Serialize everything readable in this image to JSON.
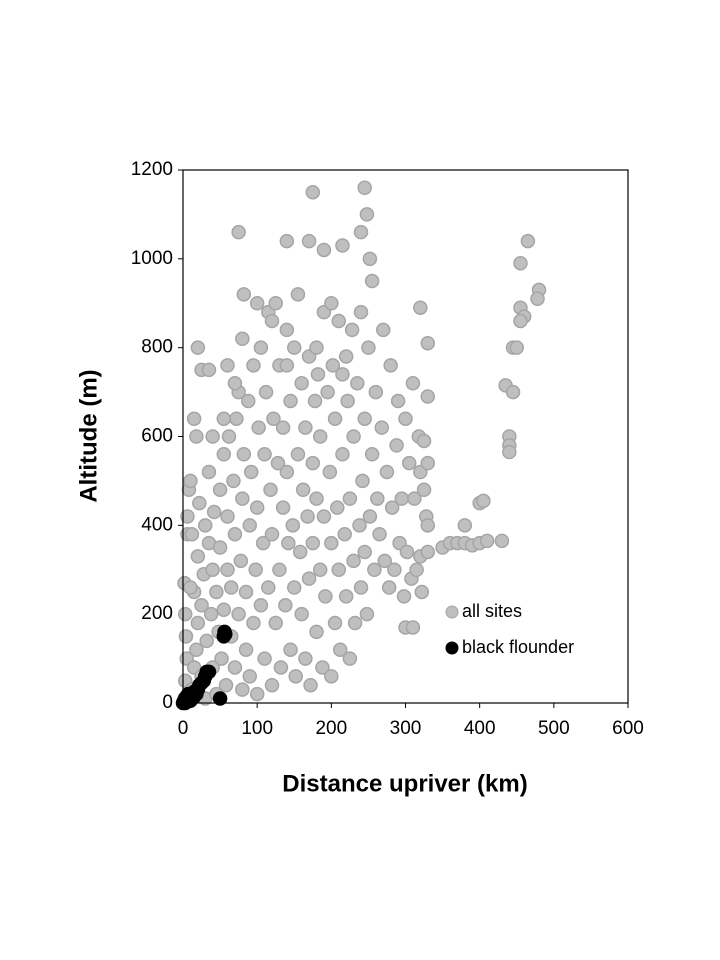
{
  "chart_data": {
    "type": "scatter",
    "x_label": "Distance upriver (km)",
    "y_label": "Altitude (m)",
    "xlim": [
      0,
      600
    ],
    "xticks": [
      0,
      100,
      200,
      300,
      400,
      500,
      600
    ],
    "ylim": [
      0,
      1200
    ],
    "yticks": [
      0,
      200,
      400,
      600,
      800,
      1000,
      1200
    ],
    "grid": false,
    "legend": "lower right",
    "series": [
      {
        "name": "all sites",
        "color": "#bfbfbf",
        "edge": "#a5a5a5",
        "points": [
          [
            2,
            10
          ],
          [
            3,
            50
          ],
          [
            5,
            100
          ],
          [
            4,
            150
          ],
          [
            3,
            200
          ],
          [
            2,
            270
          ],
          [
            6,
            380
          ],
          [
            8,
            480
          ],
          [
            10,
            500
          ],
          [
            12,
            30
          ],
          [
            15,
            80
          ],
          [
            15,
            250
          ],
          [
            18,
            120
          ],
          [
            20,
            180
          ],
          [
            20,
            330
          ],
          [
            22,
            450
          ],
          [
            25,
            60
          ],
          [
            25,
            220
          ],
          [
            28,
            290
          ],
          [
            30,
            400
          ],
          [
            30,
            10
          ],
          [
            32,
            140
          ],
          [
            35,
            360
          ],
          [
            35,
            520
          ],
          [
            38,
            200
          ],
          [
            40,
            80
          ],
          [
            40,
            300
          ],
          [
            42,
            430
          ],
          [
            45,
            250
          ],
          [
            45,
            20
          ],
          [
            48,
            160
          ],
          [
            50,
            350
          ],
          [
            50,
            480
          ],
          [
            52,
            100
          ],
          [
            55,
            210
          ],
          [
            55,
            560
          ],
          [
            58,
            40
          ],
          [
            60,
            300
          ],
          [
            60,
            420
          ],
          [
            62,
            600
          ],
          [
            65,
            150
          ],
          [
            65,
            260
          ],
          [
            68,
            500
          ],
          [
            70,
            80
          ],
          [
            70,
            380
          ],
          [
            72,
            640
          ],
          [
            75,
            200
          ],
          [
            75,
            700
          ],
          [
            78,
            320
          ],
          [
            80,
            30
          ],
          [
            80,
            460
          ],
          [
            82,
            560
          ],
          [
            85,
            120
          ],
          [
            85,
            250
          ],
          [
            88,
            680
          ],
          [
            90,
            400
          ],
          [
            90,
            60
          ],
          [
            92,
            520
          ],
          [
            95,
            180
          ],
          [
            95,
            760
          ],
          [
            98,
            300
          ],
          [
            100,
            440
          ],
          [
            100,
            20
          ],
          [
            102,
            620
          ],
          [
            105,
            220
          ],
          [
            105,
            800
          ],
          [
            108,
            360
          ],
          [
            110,
            100
          ],
          [
            110,
            560
          ],
          [
            112,
            700
          ],
          [
            115,
            260
          ],
          [
            115,
            880
          ],
          [
            118,
            480
          ],
          [
            120,
            40
          ],
          [
            120,
            380
          ],
          [
            122,
            640
          ],
          [
            125,
            180
          ],
          [
            125,
            900
          ],
          [
            128,
            540
          ],
          [
            130,
            300
          ],
          [
            130,
            760
          ],
          [
            132,
            80
          ],
          [
            135,
            440
          ],
          [
            135,
            620
          ],
          [
            138,
            220
          ],
          [
            140,
            840
          ],
          [
            140,
            520
          ],
          [
            142,
            360
          ],
          [
            145,
            120
          ],
          [
            145,
            680
          ],
          [
            148,
            400
          ],
          [
            150,
            260
          ],
          [
            150,
            800
          ],
          [
            152,
            60
          ],
          [
            155,
            560
          ],
          [
            155,
            920
          ],
          [
            158,
            340
          ],
          [
            160,
            200
          ],
          [
            160,
            720
          ],
          [
            162,
            480
          ],
          [
            165,
            100
          ],
          [
            165,
            620
          ],
          [
            168,
            420
          ],
          [
            170,
            280
          ],
          [
            170,
            780
          ],
          [
            172,
            40
          ],
          [
            175,
            540
          ],
          [
            175,
            360
          ],
          [
            178,
            680
          ],
          [
            180,
            160
          ],
          [
            180,
            460
          ],
          [
            182,
            740
          ],
          [
            185,
            300
          ],
          [
            185,
            600
          ],
          [
            188,
            80
          ],
          [
            190,
            420
          ],
          [
            190,
            880
          ],
          [
            192,
            240
          ],
          [
            195,
            700
          ],
          [
            198,
            520
          ],
          [
            200,
            60
          ],
          [
            200,
            360
          ],
          [
            202,
            760
          ],
          [
            205,
            180
          ],
          [
            205,
            640
          ],
          [
            208,
            440
          ],
          [
            210,
            300
          ],
          [
            210,
            860
          ],
          [
            212,
            120
          ],
          [
            215,
            560
          ],
          [
            218,
            380
          ],
          [
            220,
            240
          ],
          [
            220,
            780
          ],
          [
            222,
            680
          ],
          [
            225,
            100
          ],
          [
            225,
            460
          ],
          [
            228,
            840
          ],
          [
            230,
            320
          ],
          [
            230,
            600
          ],
          [
            232,
            180
          ],
          [
            235,
            720
          ],
          [
            238,
            400
          ],
          [
            240,
            260
          ],
          [
            240,
            880
          ],
          [
            242,
            500
          ],
          [
            245,
            340
          ],
          [
            245,
            640
          ],
          [
            248,
            200
          ],
          [
            250,
            800
          ],
          [
            252,
            420
          ],
          [
            255,
            560
          ],
          [
            258,
            300
          ],
          [
            260,
            700
          ],
          [
            262,
            460
          ],
          [
            265,
            380
          ],
          [
            268,
            620
          ],
          [
            270,
            840
          ],
          [
            272,
            320
          ],
          [
            275,
            520
          ],
          [
            278,
            260
          ],
          [
            280,
            760
          ],
          [
            282,
            440
          ],
          [
            285,
            300
          ],
          [
            288,
            580
          ],
          [
            290,
            680
          ],
          [
            292,
            360
          ],
          [
            295,
            460
          ],
          [
            298,
            240
          ],
          [
            300,
            640
          ],
          [
            302,
            340
          ],
          [
            305,
            540
          ],
          [
            308,
            280
          ],
          [
            310,
            720
          ],
          [
            312,
            460
          ],
          [
            315,
            300
          ],
          [
            318,
            600
          ],
          [
            320,
            520
          ],
          [
            322,
            250
          ],
          [
            325,
            480
          ],
          [
            15,
            640
          ],
          [
            18,
            600
          ],
          [
            12,
            380
          ],
          [
            10,
            260
          ],
          [
            6,
            420
          ],
          [
            40,
            600
          ],
          [
            55,
            640
          ],
          [
            60,
            760
          ],
          [
            70,
            720
          ],
          [
            80,
            820
          ],
          [
            100,
            900
          ],
          [
            120,
            860
          ],
          [
            140,
            760
          ],
          [
            180,
            800
          ],
          [
            200,
            900
          ],
          [
            215,
            740
          ],
          [
            75,
            1060
          ],
          [
            140,
            1040
          ],
          [
            170,
            1040
          ],
          [
            175,
            1150
          ],
          [
            190,
            1020
          ],
          [
            215,
            1030
          ],
          [
            245,
            1160
          ],
          [
            248,
            1100
          ],
          [
            240,
            1060
          ],
          [
            252,
            1000
          ],
          [
            255,
            950
          ],
          [
            465,
            1040
          ],
          [
            455,
            990
          ],
          [
            480,
            930
          ],
          [
            478,
            910
          ],
          [
            82,
            920
          ],
          [
            20,
            800
          ],
          [
            25,
            750
          ],
          [
            35,
            750
          ],
          [
            300,
            170
          ],
          [
            310,
            170
          ],
          [
            320,
            330
          ],
          [
            330,
            340
          ],
          [
            350,
            350
          ],
          [
            360,
            360
          ],
          [
            370,
            360
          ],
          [
            380,
            360
          ],
          [
            390,
            355
          ],
          [
            400,
            360
          ],
          [
            410,
            365
          ],
          [
            430,
            365
          ],
          [
            380,
            400
          ],
          [
            400,
            450
          ],
          [
            405,
            455
          ],
          [
            440,
            600
          ],
          [
            440,
            580
          ],
          [
            440,
            565
          ],
          [
            435,
            715
          ],
          [
            445,
            700
          ],
          [
            445,
            800
          ],
          [
            450,
            800
          ],
          [
            455,
            890
          ],
          [
            460,
            870
          ],
          [
            455,
            860
          ],
          [
            320,
            890
          ],
          [
            330,
            810
          ],
          [
            330,
            690
          ],
          [
            325,
            590
          ],
          [
            330,
            540
          ],
          [
            328,
            420
          ],
          [
            330,
            400
          ]
        ]
      },
      {
        "name": "black flounder",
        "color": "#000000",
        "edge": "#000000",
        "points": [
          [
            0,
            0
          ],
          [
            2,
            5
          ],
          [
            3,
            10
          ],
          [
            5,
            15
          ],
          [
            7,
            20
          ],
          [
            8,
            10
          ],
          [
            10,
            15
          ],
          [
            12,
            20
          ],
          [
            15,
            25
          ],
          [
            18,
            20
          ],
          [
            20,
            30
          ],
          [
            22,
            40
          ],
          [
            25,
            45
          ],
          [
            28,
            50
          ],
          [
            30,
            60
          ],
          [
            32,
            70
          ],
          [
            35,
            70
          ],
          [
            50,
            10
          ],
          [
            55,
            150
          ],
          [
            56,
            160
          ],
          [
            57,
            155
          ],
          [
            3,
            0
          ],
          [
            6,
            5
          ],
          [
            1,
            3
          ],
          [
            10,
            5
          ],
          [
            14,
            12
          ]
        ]
      }
    ]
  }
}
